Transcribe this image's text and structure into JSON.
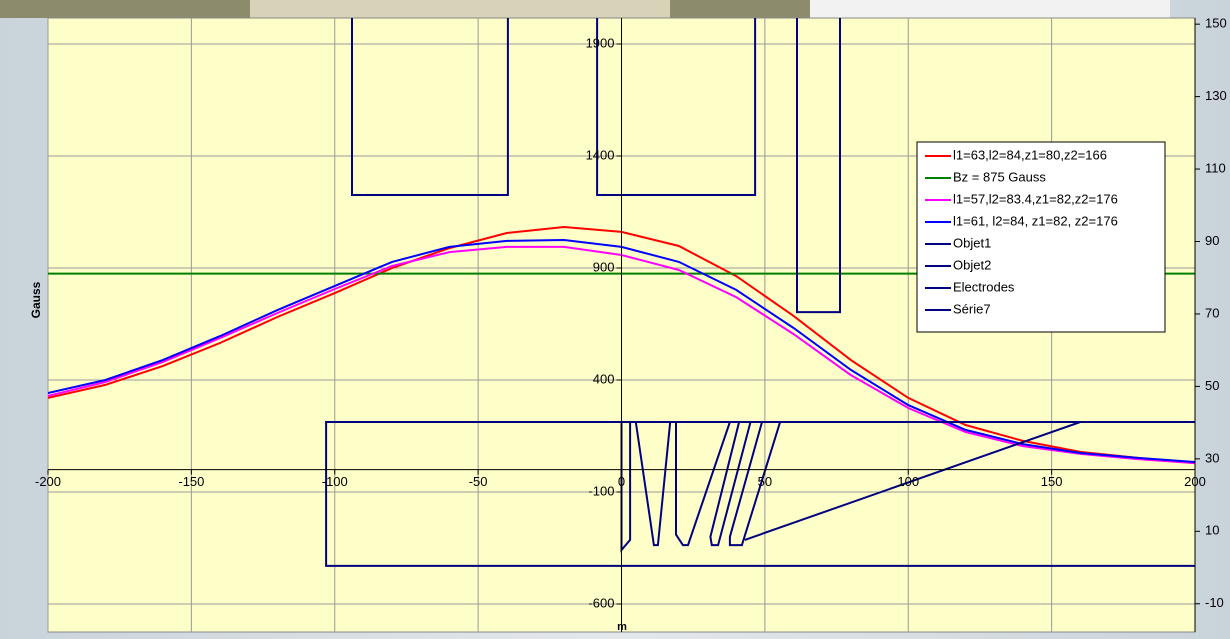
{
  "chart_data": {
    "type": "line",
    "xlabel": "m",
    "ylabel": "Gauss",
    "x": [
      -200,
      -180,
      -160,
      -140,
      -120,
      -100,
      -80,
      -60,
      -40,
      -20,
      0,
      20,
      40,
      60,
      80,
      100,
      120,
      140,
      160,
      180,
      200
    ],
    "xlim": [
      -200,
      200
    ],
    "xticks": [
      -200,
      -150,
      -100,
      -50,
      0,
      50,
      100,
      150,
      200
    ],
    "ylim": [
      -725,
      2016
    ],
    "yticks": [
      -600,
      -100,
      400,
      900,
      1400,
      1900
    ],
    "y2lim": [
      -17.8,
      151.7
    ],
    "y2ticks": [
      -10,
      10,
      30,
      50,
      70,
      90,
      110,
      130,
      150
    ],
    "grid": true,
    "legend": "upper right",
    "series": [
      {
        "name": "l1=63,l2=84,z1=80,z2=166",
        "color": "#ff0000",
        "values": [
          320,
          378,
          462,
          565,
          681,
          788,
          900,
          989,
          1056,
          1083,
          1061,
          998,
          864,
          686,
          489,
          320,
          199,
          128,
          79,
          52,
          29
        ]
      },
      {
        "name": "Bz = 875 Gauss",
        "color": "#008000",
        "values": [
          875,
          875,
          875,
          875,
          875,
          875,
          875,
          875,
          875,
          875,
          875,
          875,
          875,
          875,
          875,
          875,
          875,
          875,
          875,
          875,
          875
        ]
      },
      {
        "name": "l1=57,l2=83.4,z1=82,z2=176",
        "color": "#ff00ff",
        "values": [
          329,
          391,
          480,
          587,
          699,
          806,
          909,
          971,
          994,
          994,
          958,
          891,
          770,
          605,
          422,
          275,
          168,
          105,
          70,
          47,
          29
        ]
      },
      {
        "name": "l1=61, l2=84, z1=82, z2=176",
        "color": "#0000ff",
        "values": [
          342,
          400,
          489,
          596,
          712,
          820,
          927,
          994,
          1021,
          1025,
          994,
          927,
          802,
          632,
          445,
          288,
          177,
          114,
          74,
          52,
          34
        ]
      },
      {
        "name": "Objet1",
        "color": "#000080",
        "x": [
          -94,
          -94,
          -39.6,
          -39.6,
          null,
          -8.5,
          -8.5,
          46.6,
          46.6,
          null,
          61.2,
          61.2,
          76.2,
          76.2
        ],
        "values": [
          2016,
          1226,
          1226,
          2016,
          null,
          2016,
          1226,
          1226,
          2016,
          null,
          2016,
          703,
          703,
          2016
        ]
      },
      {
        "name": "Objet2",
        "color": "#000080",
        "x": [
          200,
          -103,
          -103,
          200
        ],
        "values": [
          212.5,
          212.5,
          -430,
          -430
        ]
      },
      {
        "name": "Electrodes",
        "color": "#000080",
        "x": [
          0,
          0,
          3,
          3,
          null,
          5,
          17,
          12.7,
          11.3,
          5,
          null,
          19,
          37.8,
          23.2,
          21.4,
          19,
          19,
          null,
          41,
          45,
          33.7,
          31.5,
          31,
          41,
          null,
          49,
          55.3,
          42,
          37.8,
          37.8,
          49
        ],
        "values": [
          212.5,
          -359,
          -314,
          212.5,
          null,
          212.5,
          212.5,
          -337,
          -337,
          212.5,
          null,
          212.5,
          212.5,
          -337,
          -337,
          -290,
          212.5,
          null,
          212.5,
          212.5,
          -337,
          -337,
          -300,
          212.5,
          null,
          212.5,
          212.5,
          -337,
          -337,
          -300,
          212.5
        ]
      },
      {
        "name": "Série7",
        "color": "#000080",
        "x": [
          43,
          160,
          200
        ],
        "values": [
          -314,
          212.5,
          212.5
        ]
      }
    ]
  }
}
